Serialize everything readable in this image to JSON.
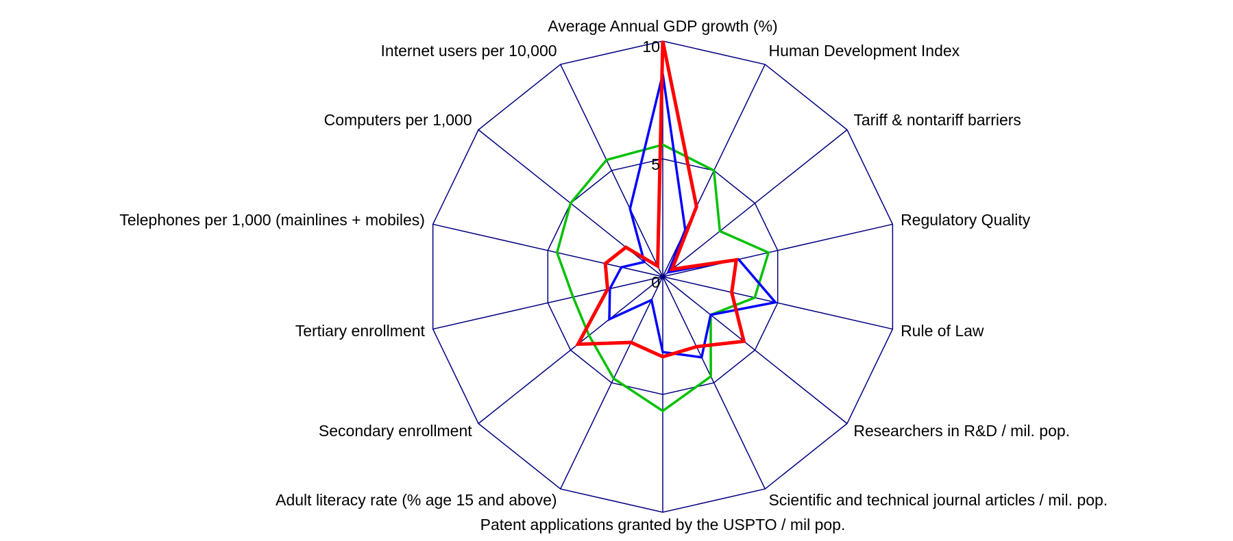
{
  "chart_data": {
    "type": "radar",
    "categories": [
      "Average Annual GDP growth (%)",
      "Human Development Index",
      "Tariff & nontariff barriers",
      "Regulatory Quality",
      "Rule of Law",
      "Researchers in R&D / mil. pop.",
      "Scientific and technical journal articles / mil. pop.",
      "Patent applications granted by the USPTO / mil pop.",
      "Adult literacy rate (% age 15 and above)",
      "Secondary enrollment",
      "Tertiary  enrollment",
      "Telephones per 1,000 (mainlines + mobiles)",
      "Computers per 1,000",
      "Internet users per 10,000"
    ],
    "series": [
      {
        "color": "#00c000",
        "values": [
          5.6,
          5.0,
          3.1,
          4.6,
          4.0,
          2.6,
          4.7,
          5.7,
          4.8,
          4.0,
          3.9,
          4.6,
          5.0,
          5.5
        ]
      },
      {
        "color": "#0000ff",
        "values": [
          8.6,
          2.2,
          0.3,
          3.3,
          4.9,
          2.6,
          3.8,
          3.2,
          1.1,
          2.9,
          2.3,
          1.8,
          1.0,
          3.2
        ]
      },
      {
        "color": "#ff0000",
        "values": [
          10,
          3.3,
          0.5,
          3.2,
          3.0,
          4.4,
          3.3,
          3.4,
          3.1,
          4.6,
          2.4,
          2.5,
          2.0,
          0.5
        ]
      }
    ],
    "ylim": [
      0,
      10
    ],
    "yticks": [
      0,
      5,
      10
    ],
    "grid": true,
    "grid_color": "#000080"
  }
}
